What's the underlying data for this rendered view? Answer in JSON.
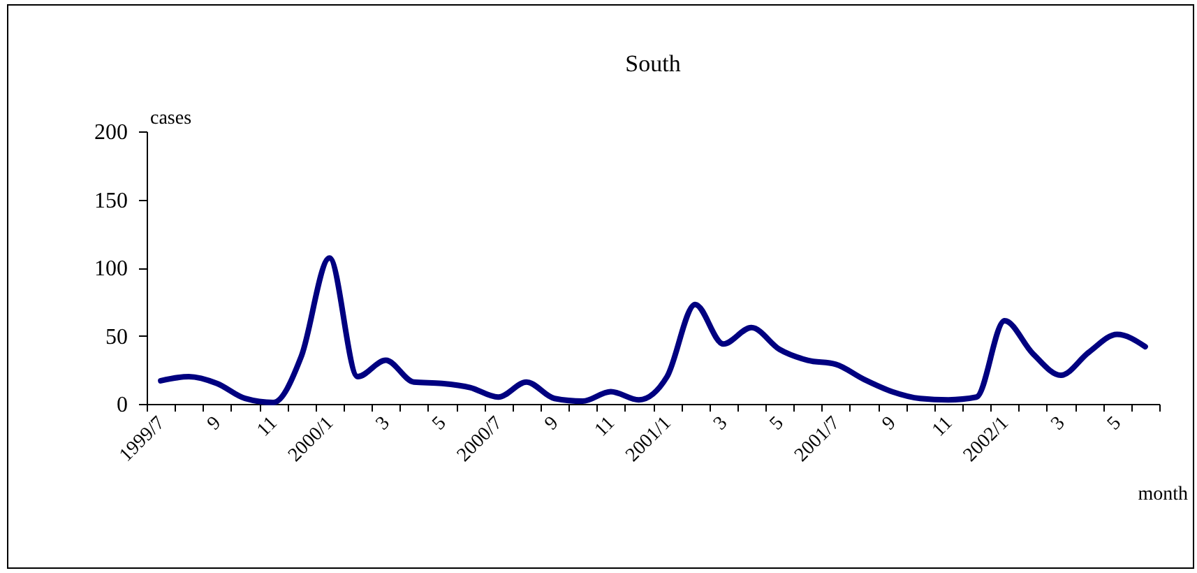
{
  "chart_data": {
    "type": "line",
    "title": "South",
    "xlabel": "month",
    "ylabel": "cases",
    "categories": [
      "1999/7",
      null,
      "9",
      null,
      "11",
      null,
      "2000/1",
      null,
      "3",
      null,
      "5",
      null,
      "2000/7",
      null,
      "9",
      null,
      "11",
      null,
      "2001/1",
      null,
      "3",
      null,
      "5",
      null,
      "2001/7",
      null,
      "9",
      null,
      "11",
      null,
      "2002/1",
      null,
      "3",
      null,
      "5",
      null
    ],
    "series": [
      {
        "color": "#000080",
        "values": [
          17,
          20,
          15,
          4,
          1,
          35,
          107,
          20,
          32,
          16,
          15,
          12,
          5,
          16,
          4,
          2,
          9,
          3,
          20,
          73,
          44,
          56,
          40,
          32,
          29,
          18,
          9,
          4,
          3,
          5,
          61,
          37,
          21,
          38,
          51,
          42
        ]
      }
    ],
    "ylim": [
      0,
      200
    ],
    "yticks": [
      0,
      50,
      100,
      150,
      200
    ],
    "grid": false,
    "line_style": "solid",
    "marker": "none"
  }
}
